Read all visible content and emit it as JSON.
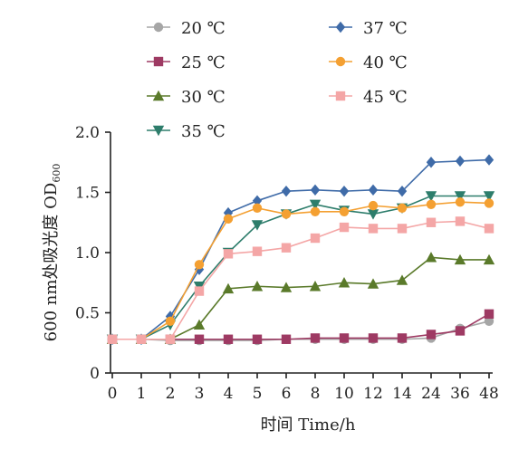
{
  "chart_data": {
    "type": "line",
    "title": "",
    "xlabel": "时间  Time/h",
    "ylabel": "600 nm处吸光度 OD",
    "ylabel_subscript": "600",
    "categories": [
      "0",
      "1",
      "2",
      "3",
      "4",
      "5",
      "6",
      "8",
      "10",
      "12",
      "14",
      "24",
      "36",
      "48"
    ],
    "ylim": [
      0,
      2.0
    ],
    "yticks": [
      "0",
      "0.5",
      "1.0",
      "1.5",
      "2.0"
    ],
    "grid": false,
    "legend_position": "top",
    "series": [
      {
        "name": "20 ℃",
        "color": "#a6a6a6",
        "marker": "circle",
        "values": [
          0.28,
          0.28,
          0.27,
          0.27,
          0.27,
          0.27,
          0.28,
          0.28,
          0.28,
          0.28,
          0.28,
          0.29,
          0.37,
          0.43
        ]
      },
      {
        "name": "25 ℃",
        "color": "#9e3a63",
        "marker": "square",
        "values": [
          0.28,
          0.28,
          0.28,
          0.28,
          0.28,
          0.28,
          0.28,
          0.29,
          0.29,
          0.29,
          0.29,
          0.32,
          0.35,
          0.49
        ]
      },
      {
        "name": "30 ℃",
        "color": "#5a7a2a",
        "marker": "triangle-up",
        "values": [
          0.28,
          0.28,
          0.28,
          0.4,
          0.7,
          0.72,
          0.71,
          0.72,
          0.75,
          0.74,
          0.77,
          0.96,
          0.94,
          0.94
        ]
      },
      {
        "name": "35 ℃",
        "color": "#2d7d6b",
        "marker": "triangle-down",
        "values": [
          0.28,
          0.28,
          0.4,
          0.72,
          1.0,
          1.23,
          1.32,
          1.4,
          1.35,
          1.32,
          1.37,
          1.47,
          1.47,
          1.47
        ]
      },
      {
        "name": "37 ℃",
        "color": "#3f6ba8",
        "marker": "diamond",
        "values": [
          0.28,
          0.28,
          0.47,
          0.86,
          1.33,
          1.43,
          1.51,
          1.52,
          1.51,
          1.52,
          1.51,
          1.75,
          1.76,
          1.77
        ]
      },
      {
        "name": "40 ℃",
        "color": "#f4a032",
        "marker": "circle",
        "values": [
          0.28,
          0.28,
          0.43,
          0.9,
          1.28,
          1.37,
          1.32,
          1.34,
          1.34,
          1.39,
          1.37,
          1.4,
          1.42,
          1.41
        ]
      },
      {
        "name": "45 ℃",
        "color": "#f4a6a6",
        "marker": "square",
        "values": [
          0.28,
          0.28,
          0.28,
          0.68,
          0.99,
          1.01,
          1.04,
          1.12,
          1.21,
          1.2,
          1.2,
          1.25,
          1.26,
          1.2
        ]
      }
    ]
  }
}
